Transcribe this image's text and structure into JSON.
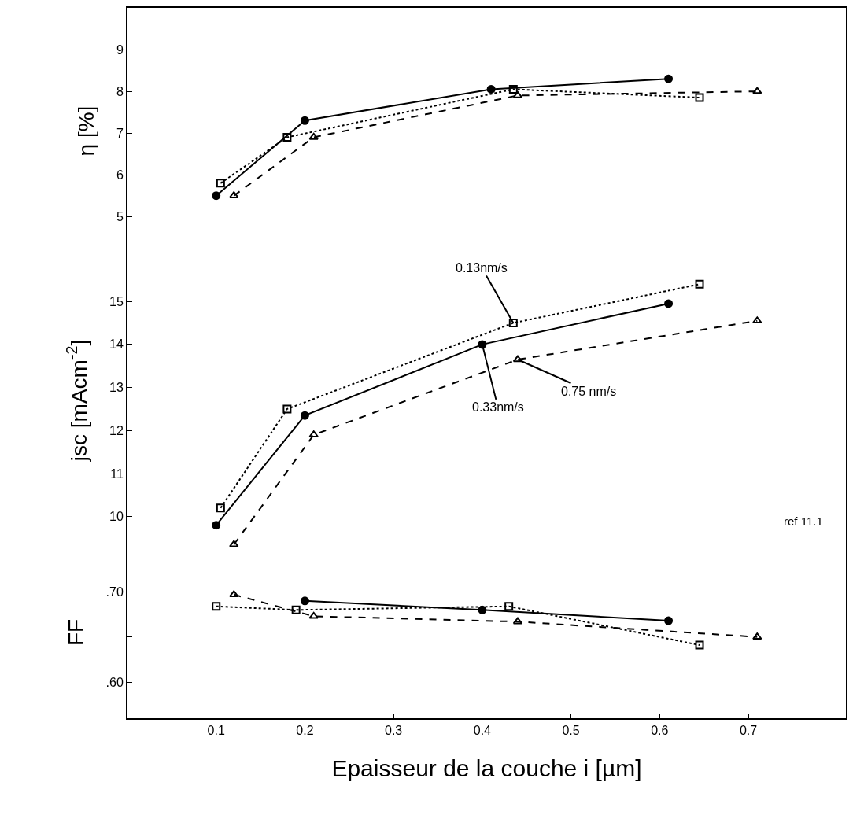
{
  "chart_data": [
    {
      "type": "line",
      "ylabel": "η [%]",
      "xlim": [
        0,
        0.81
      ],
      "xticks": [
        0.1,
        0.2,
        0.3,
        0.4,
        0.5,
        0.6,
        0.7
      ],
      "ylim": [
        4.1,
        10
      ],
      "yticks": [
        5,
        6,
        7,
        8,
        9
      ],
      "tick_labels": "y",
      "series": [
        {
          "color": "#000000",
          "marker": "square",
          "line_style": "dotted",
          "x": [
            0.105,
            0.18,
            0.435,
            0.645
          ],
          "values": [
            5.8,
            6.9,
            8.05,
            7.85
          ]
        },
        {
          "color": "#000000",
          "marker": "circle",
          "line_style": "solid",
          "x": [
            0.1,
            0.2,
            0.41,
            0.61
          ],
          "values": [
            5.5,
            7.3,
            8.05,
            8.3
          ]
        },
        {
          "color": "#000000",
          "marker": "triangle",
          "line_style": "dashed",
          "x": [
            0.12,
            0.21,
            0.44,
            0.71
          ],
          "values": [
            5.5,
            6.9,
            7.9,
            8.0
          ]
        }
      ]
    },
    {
      "type": "line",
      "ylabel": "jsc [mAcm$^{-2}$]",
      "xlim": [
        0,
        0.81
      ],
      "xticks": [
        0.1,
        0.2,
        0.3,
        0.4,
        0.5,
        0.6,
        0.7
      ],
      "ylim": [
        9.3,
        16.1
      ],
      "yticks": [
        10,
        11,
        12,
        13,
        14,
        15
      ],
      "tick_labels": "y",
      "annotations": [
        "ref 11.1"
      ],
      "series": [
        {
          "name": "0.13nm/s",
          "color": "#000000",
          "marker": "square",
          "line_style": "dotted",
          "x": [
            0.105,
            0.18,
            0.435,
            0.645
          ],
          "values": [
            10.2,
            12.5,
            14.5,
            15.4
          ]
        },
        {
          "name": "0.33nm/s",
          "color": "#000000",
          "marker": "circle",
          "line_style": "solid",
          "x": [
            0.1,
            0.2,
            0.4,
            0.61
          ],
          "values": [
            9.8,
            12.35,
            14.0,
            14.95
          ]
        },
        {
          "name": "0.75 nm/s",
          "color": "#000000",
          "marker": "triangle",
          "line_style": "dashed",
          "x": [
            0.12,
            0.21,
            0.44,
            0.71
          ],
          "values": [
            9.35,
            11.9,
            13.65,
            14.55
          ]
        }
      ]
    },
    {
      "type": "line",
      "ylabel": "FF",
      "xlabel": "Epaisseur de la couche i [µm]",
      "xlim": [
        0,
        0.81
      ],
      "xticks": [
        0.1,
        0.2,
        0.3,
        0.4,
        0.5,
        0.6,
        0.7
      ],
      "ylim": [
        0.56,
        0.75
      ],
      "yticks": [
        {
          "value": 0.7,
          "label": ".70"
        },
        {
          "value": 0.65,
          "label": null
        },
        {
          "value": 0.6,
          "label": ".60"
        }
      ],
      "series": [
        {
          "color": "#000000",
          "marker": "square",
          "line_style": "dotted",
          "x": [
            0.1,
            0.19,
            0.43,
            0.645
          ],
          "values": [
            0.684,
            0.68,
            0.684,
            0.641
          ]
        },
        {
          "color": "#000000",
          "marker": "circle",
          "line_style": "solid",
          "x": [
            0.2,
            0.4,
            0.61
          ],
          "values": [
            0.69,
            0.68,
            0.668
          ]
        },
        {
          "color": "#000000",
          "marker": "triangle",
          "line_style": "dashed",
          "x": [
            0.12,
            0.21,
            0.44,
            0.71
          ],
          "values": [
            0.697,
            0.673,
            0.667,
            0.65
          ]
        }
      ]
    }
  ]
}
